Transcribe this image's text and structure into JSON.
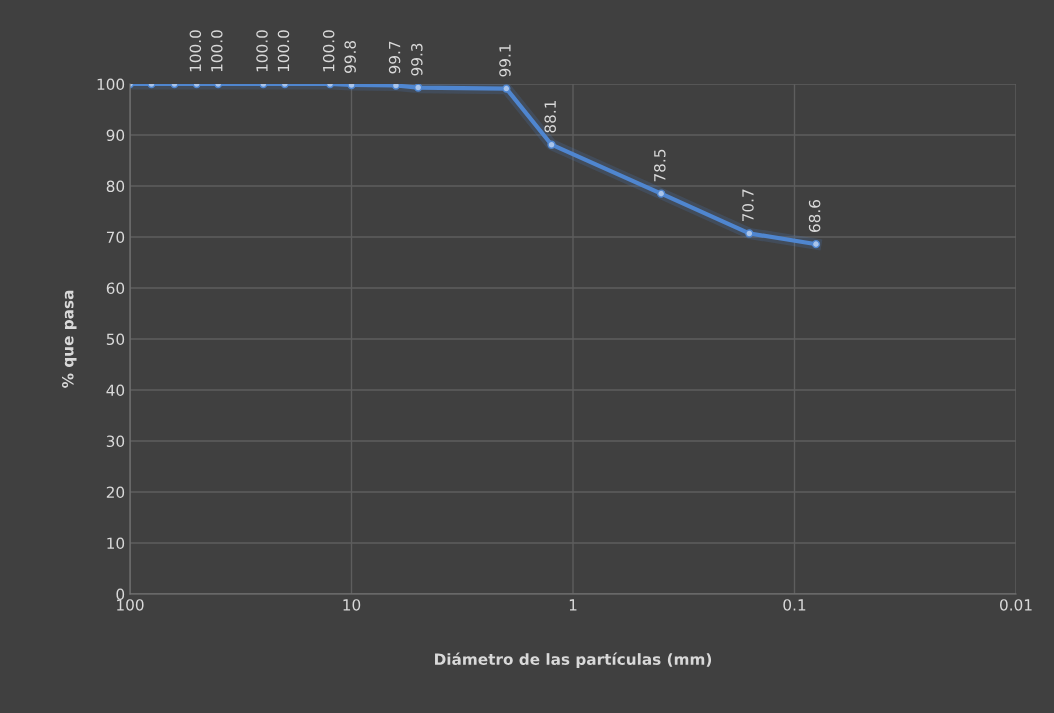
{
  "chart_data": {
    "type": "line",
    "xlabel": "Diámetro de las partículas (mm)",
    "ylabel": "% que pasa",
    "x": [
      100,
      80,
      63,
      50,
      40,
      25,
      20,
      12.5,
      10,
      6.3,
      5,
      2,
      1.25,
      0.4,
      0.16,
      0.08
    ],
    "series": [
      {
        "color": "#4f86d0",
        "values": [
          100,
          100,
          100,
          100,
          100,
          100,
          100,
          100,
          99.8,
          99.7,
          99.3,
          99.1,
          88.1,
          78.5,
          70.7,
          68.6
        ],
        "value_labels": [
          null,
          null,
          null,
          "100.0",
          "100.0",
          "100.0",
          "100.0",
          "100.0",
          "99.8",
          "99.7",
          "99.3",
          "99.1",
          "88.1",
          "78.5",
          "70.7",
          "68.6"
        ]
      }
    ],
    "log": "x",
    "xlim": [
      100,
      0.01
    ],
    "xticks": [
      100,
      10,
      1,
      0.1,
      0.01
    ],
    "ylim": [
      0,
      100
    ],
    "yticks": [
      0,
      10,
      20,
      30,
      40,
      50,
      60,
      70,
      80,
      90,
      100
    ],
    "grid": true,
    "marker": "circle",
    "line_style": "solid"
  }
}
